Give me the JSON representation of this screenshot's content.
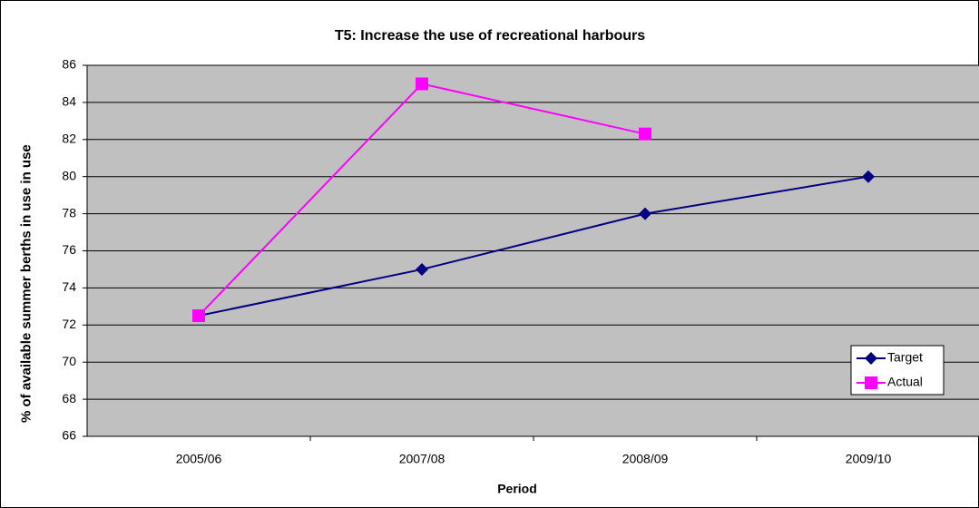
{
  "chart_data": {
    "type": "line",
    "title": "T5: Increase the use of recreational harbours",
    "x_label": "Period",
    "y_label": "% of available summer berths in use in use",
    "categories": [
      "2005/06",
      "2007/08",
      "2008/09",
      "2009/10"
    ],
    "series": [
      {
        "name": "Target",
        "color": "#000080",
        "marker": "diamond",
        "values": [
          72.5,
          75,
          78,
          80
        ]
      },
      {
        "name": "Actual",
        "color": "#ff00ff",
        "marker": "square",
        "values": [
          72.5,
          85,
          82.3,
          null
        ]
      }
    ],
    "ylim": [
      66,
      86
    ],
    "yticks": [
      66,
      68,
      70,
      72,
      74,
      76,
      78,
      80,
      82,
      84,
      86
    ],
    "grid": true,
    "legend": "lower right"
  }
}
